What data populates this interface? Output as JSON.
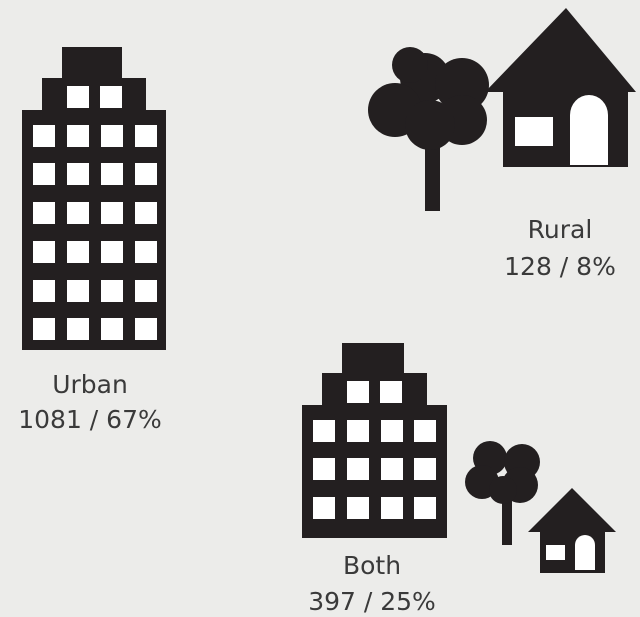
{
  "items": [
    {
      "label": "Urban",
      "value_label": "1081 / 67%"
    },
    {
      "label": "Rural",
      "value_label": "128 / 8%"
    },
    {
      "label": "Both",
      "value_label": "397 / 25%"
    }
  ]
}
